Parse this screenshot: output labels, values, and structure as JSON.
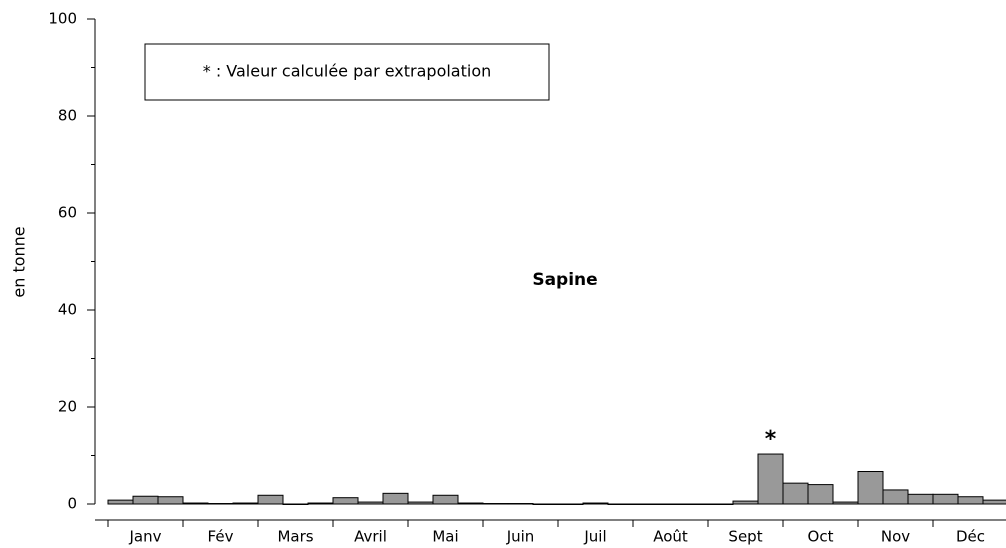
{
  "chart_data": {
    "type": "bar",
    "title": "Sapine",
    "ylabel": "en tonne",
    "note": "* : Valeur calculée par extrapolation",
    "annotation": "*",
    "categories": [
      "Janv",
      "Fév",
      "Mars",
      "Avril",
      "Mai",
      "Juin",
      "Juil",
      "Août",
      "Sept",
      "Oct",
      "Nov",
      "Déc"
    ],
    "values": [
      [
        0.8,
        1.6,
        1.5
      ],
      [
        0.2,
        0.1,
        0.2
      ],
      [
        1.8,
        0,
        0.2
      ],
      [
        1.3,
        0.4,
        2.2
      ],
      [
        0.4,
        1.8,
        0.2
      ],
      [
        0.1,
        0.1,
        0
      ],
      [
        0,
        0.2,
        0
      ],
      [
        0,
        0,
        0
      ],
      [
        0,
        0.6,
        10.3
      ],
      [
        4.3,
        4.0,
        0.4
      ],
      [
        6.7,
        2.9,
        2.0
      ],
      [
        2.0,
        1.5,
        0.8
      ]
    ],
    "color": "#999999",
    "ylim": [
      0,
      100
    ],
    "yticks": [
      0,
      20,
      40,
      60,
      80,
      100
    ],
    "yminorticks": [
      10,
      30,
      50,
      70,
      90
    ]
  }
}
